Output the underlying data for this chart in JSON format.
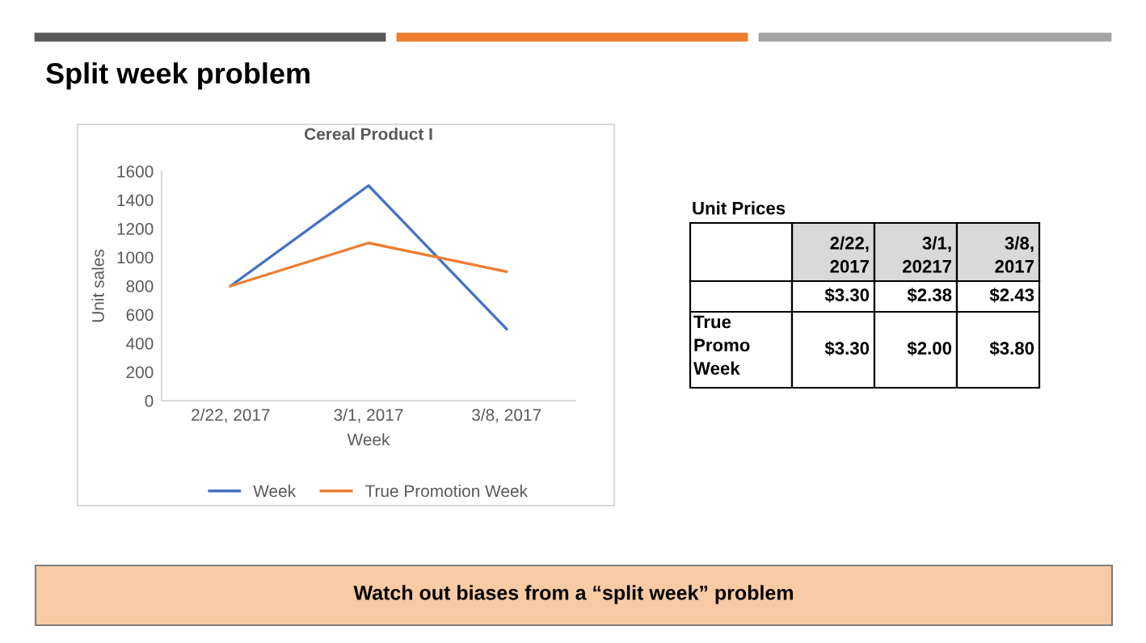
{
  "chart_data": [
    {
      "type": "line",
      "title": "Cereal Product I",
      "xlabel": "Week",
      "ylabel": "Unit sales",
      "categories": [
        "2/22, 2017",
        "3/1, 2017",
        "3/8, 2017"
      ],
      "series": [
        {
          "name": "Week",
          "color": "#4472c4",
          "values": [
            800,
            1500,
            500
          ]
        },
        {
          "name": "True Promotion Week",
          "color": "#ed7d31",
          "values": [
            800,
            1100,
            900
          ]
        }
      ],
      "ylim": [
        0,
        1600
      ],
      "yticks": [
        0,
        200,
        400,
        600,
        800,
        1000,
        1200,
        1400,
        1600
      ],
      "grid": false,
      "legend": "bottom",
      "marker": "none",
      "line_style": "solid"
    },
    {
      "type": "other",
      "title": "Unit Prices",
      "categories": [
        "2/22, 2017",
        "3/1, 20217",
        "3/8, 2017"
      ],
      "y_categories": [
        null,
        "True Promo Week"
      ],
      "cell_labels": [
        [
          "$3.30",
          "$2.38",
          "$2.43"
        ],
        [
          "$3.30",
          "$2.00",
          "$3.80"
        ]
      ]
    },
    {
      "type": "other",
      "title": "Split week problem",
      "annotations": [
        "Watch out biases from a “split week” problem"
      ]
    }
  ]
}
